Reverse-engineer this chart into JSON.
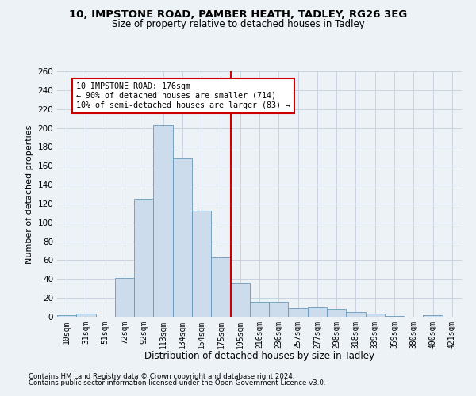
{
  "title1": "10, IMPSTONE ROAD, PAMBER HEATH, TADLEY, RG26 3EG",
  "title2": "Size of property relative to detached houses in Tadley",
  "xlabel": "Distribution of detached houses by size in Tadley",
  "ylabel": "Number of detached properties",
  "categories": [
    "10sqm",
    "31sqm",
    "51sqm",
    "72sqm",
    "92sqm",
    "113sqm",
    "134sqm",
    "154sqm",
    "175sqm",
    "195sqm",
    "216sqm",
    "236sqm",
    "257sqm",
    "277sqm",
    "298sqm",
    "318sqm",
    "339sqm",
    "359sqm",
    "380sqm",
    "400sqm",
    "421sqm"
  ],
  "values": [
    2,
    3,
    0,
    41,
    125,
    203,
    168,
    112,
    63,
    36,
    16,
    16,
    9,
    10,
    8,
    5,
    3,
    1,
    0,
    2,
    0
  ],
  "bar_color": "#ccdcec",
  "bar_edge_color": "#6699bb",
  "grid_color": "#c8d4e0",
  "vline_index": 8,
  "vline_color": "#cc0000",
  "annotation_title": "10 IMPSTONE ROAD: 176sqm",
  "annotation_line1": "← 90% of detached houses are smaller (714)",
  "annotation_line2": "10% of semi-detached houses are larger (83) →",
  "annotation_box_fc": "#ffffff",
  "annotation_box_ec": "#cc0000",
  "ylim": [
    0,
    260
  ],
  "yticks": [
    0,
    20,
    40,
    60,
    80,
    100,
    120,
    140,
    160,
    180,
    200,
    220,
    240,
    260
  ],
  "footnote1": "Contains HM Land Registry data © Crown copyright and database right 2024.",
  "footnote2": "Contains public sector information licensed under the Open Government Licence v3.0.",
  "bg_color": "#edf2f7"
}
